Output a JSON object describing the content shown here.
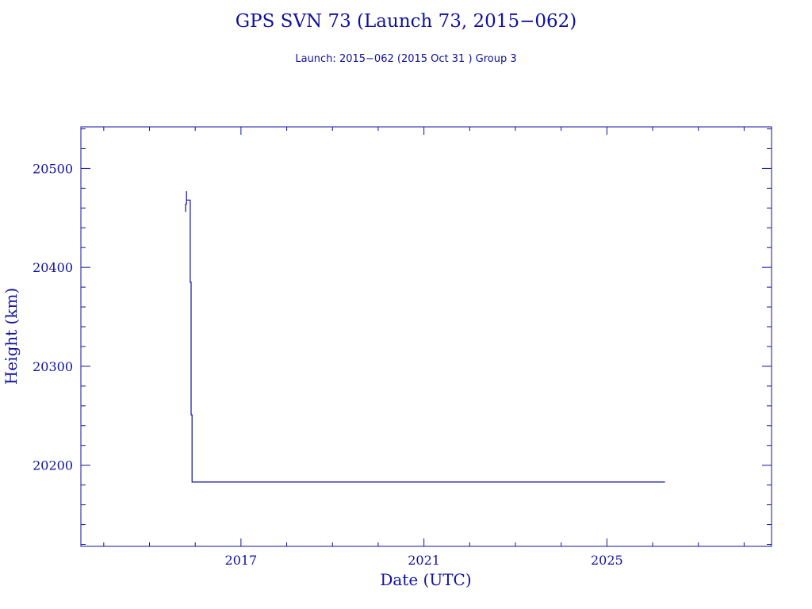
{
  "chart_data": {
    "type": "line",
    "title": "GPS SVN 73 (Launch 73, 2015−062)",
    "subtitle": "Launch: 2015−062  (2015 Oct 31 )  Group 3",
    "xlabel": "Date (UTC)",
    "ylabel": "Height (km)",
    "xlim": [
      2013.5,
      2028.6
    ],
    "ylim": [
      20118,
      20542
    ],
    "x_ticks": [
      2017,
      2021,
      2025
    ],
    "x_tick_labels": [
      "2017",
      "2021",
      "2025"
    ],
    "y_ticks": [
      20200,
      20300,
      20400,
      20500
    ],
    "y_tick_labels": [
      "20200",
      "20300",
      "20400",
      "20500"
    ],
    "grid": false,
    "color": "#1010a0",
    "series": [
      {
        "x": [
          2015.79,
          2015.79,
          2015.81,
          2015.81,
          2015.81,
          2015.89,
          2015.89,
          2015.91,
          2015.91,
          2015.93,
          2015.93,
          2026.27
        ],
        "y": [
          20456,
          20464,
          20464,
          20477,
          20468,
          20468,
          20385,
          20385,
          20251,
          20251,
          20183,
          20183
        ]
      }
    ]
  }
}
